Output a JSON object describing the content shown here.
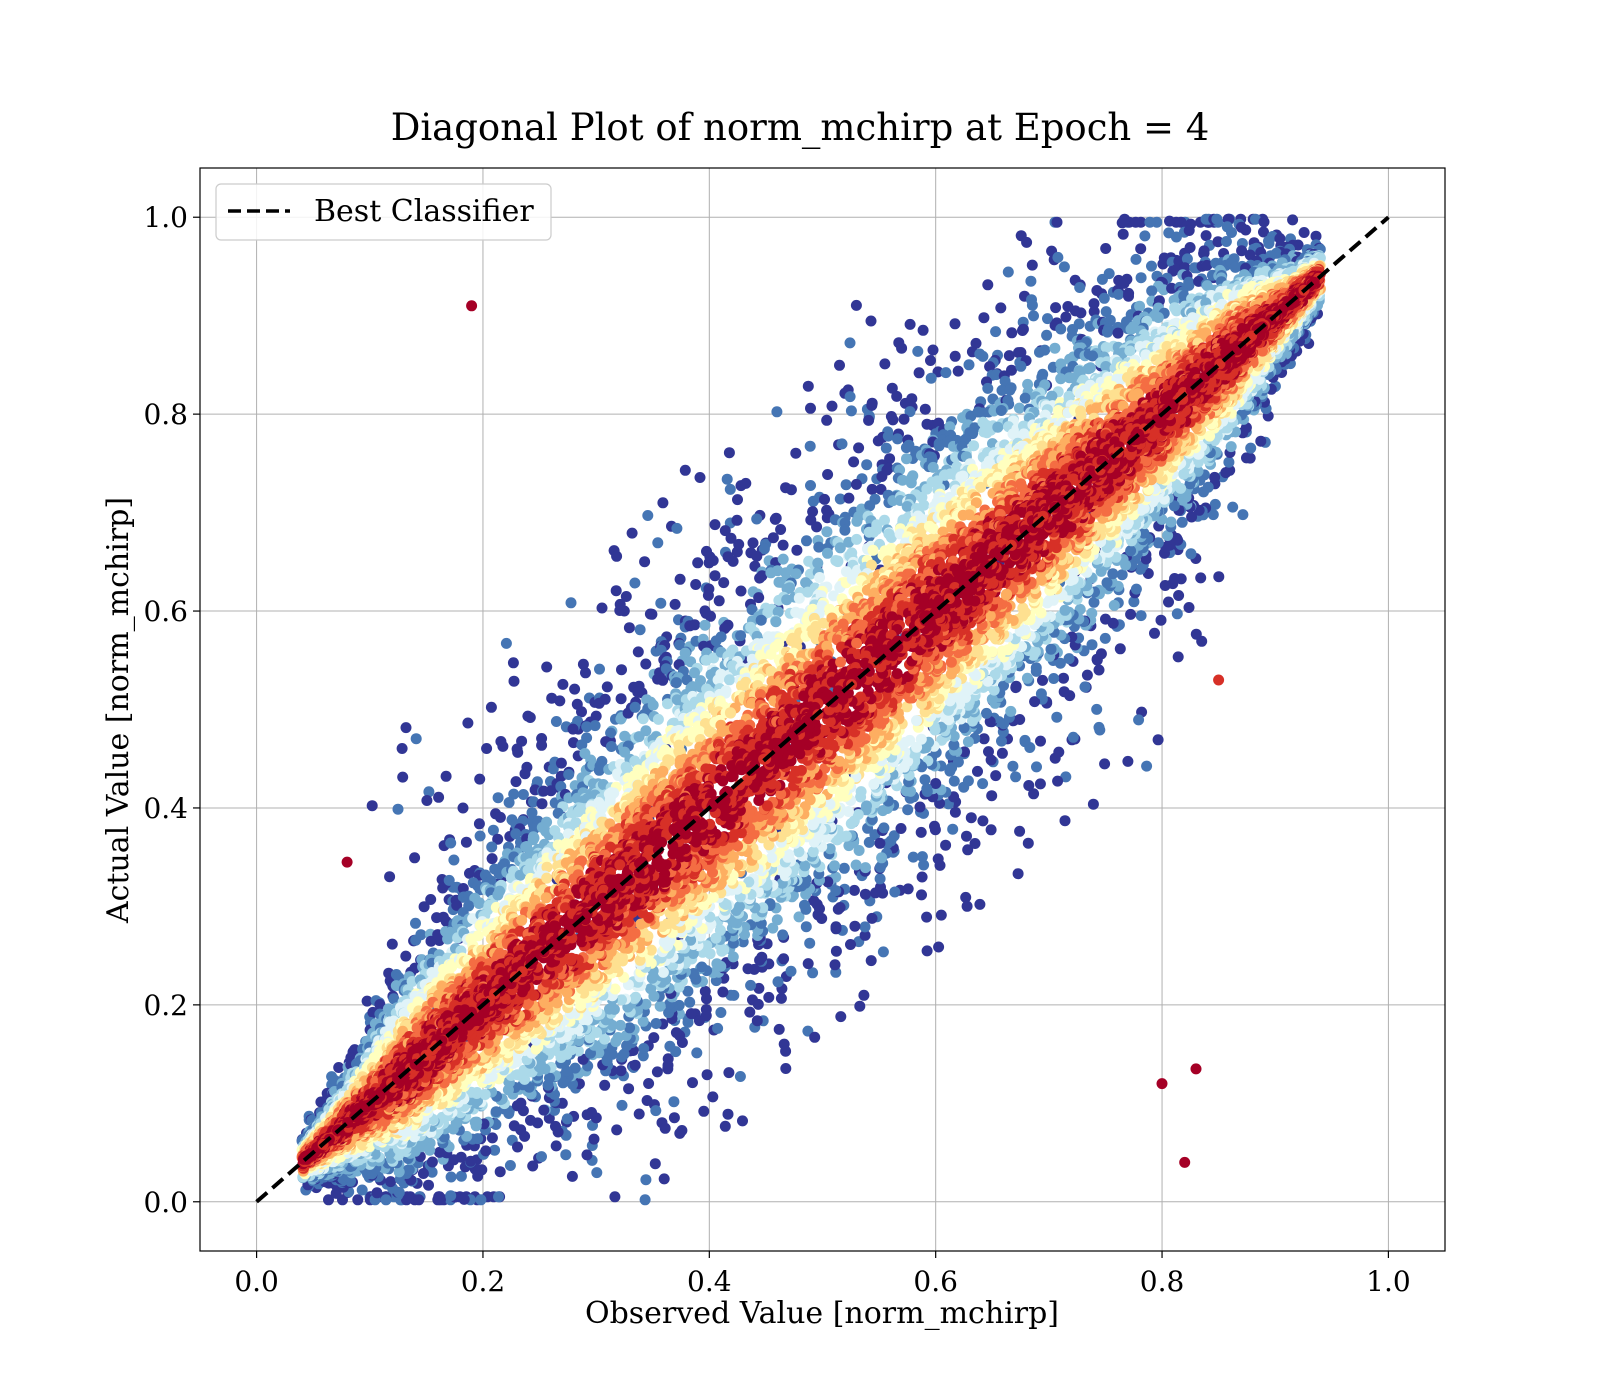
{
  "chart_data": {
    "type": "scatter",
    "title": "Diagonal Plot of norm_mchirp at Epoch = 4",
    "xlabel": "Observed Value [norm_mchirp]",
    "ylabel": "Actual Value [norm_mchirp]",
    "xlim": [
      -0.05,
      1.05
    ],
    "ylim": [
      -0.05,
      1.05
    ],
    "xticks": [
      0.0,
      0.2,
      0.4,
      0.6,
      0.8,
      1.0
    ],
    "yticks": [
      0.0,
      0.2,
      0.4,
      0.6,
      0.8,
      1.0
    ],
    "xtick_labels": [
      "0.0",
      "0.2",
      "0.4",
      "0.6",
      "0.8",
      "1.0"
    ],
    "ytick_labels": [
      "0.0",
      "0.2",
      "0.4",
      "0.6",
      "0.8",
      "1.0"
    ],
    "grid": true,
    "legend": {
      "placement": "top-left",
      "entries": [
        {
          "label": "Best Classifier",
          "style": "dashed",
          "color": "#000000"
        }
      ]
    },
    "colormap": "RdYlBu_r (density)",
    "colors": [
      "#313695",
      "#4575b4",
      "#74add1",
      "#abd9e9",
      "#e0f3f8",
      "#ffffbf",
      "#fee090",
      "#fdae61",
      "#f46d43",
      "#d73027",
      "#a50026"
    ],
    "reference_line": {
      "name": "Best Classifier",
      "x": [
        0.0,
        1.0
      ],
      "y": [
        0.0,
        1.0
      ]
    },
    "points": {
      "description": "approx. 12000 points clustered around y = x",
      "x_range": [
        0.04,
        0.94
      ],
      "y_range": [
        0.0,
        1.0
      ],
      "notable_outliers": [
        [
          0.08,
          0.345
        ],
        [
          0.19,
          0.91
        ],
        [
          0.8,
          0.12
        ],
        [
          0.83,
          0.135
        ],
        [
          0.82,
          0.04
        ],
        [
          0.85,
          0.53
        ]
      ]
    }
  }
}
